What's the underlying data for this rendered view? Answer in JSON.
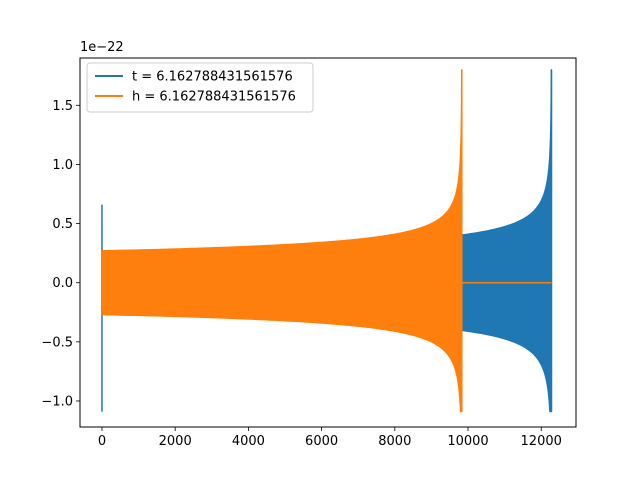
{
  "chart_data": {
    "type": "line",
    "title": "",
    "xlabel": "",
    "ylabel": "",
    "y_offset_text": "1e−22",
    "xlim": [
      -600,
      12950
    ],
    "ylim": [
      -1.22,
      1.9
    ],
    "x_ticks": [
      0,
      2000,
      4000,
      6000,
      8000,
      10000,
      12000
    ],
    "x_tick_labels": [
      "0",
      "2000",
      "4000",
      "6000",
      "8000",
      "10000",
      "12000"
    ],
    "y_ticks": [
      -1.0,
      -0.5,
      0.0,
      0.5,
      1.0,
      1.5
    ],
    "y_tick_labels": [
      "−1.0",
      "−0.5",
      "0.0",
      "0.5",
      "1.0",
      "1.5"
    ],
    "grid": false,
    "legend_position": "top-left",
    "series": [
      {
        "name": "t = 6.162788431561576",
        "color": "#1f77b4",
        "spike": {
          "x": 0,
          "ymin": -1.09,
          "ymax": 0.66
        },
        "envelope": {
          "x_start": 0,
          "x_end": 12280,
          "start_amplitude": 0.27,
          "chirp_time": 12280,
          "peak_upper": 1.8,
          "peak_lower": -1.09
        }
      },
      {
        "name": "h = 6.162788431561576",
        "color": "#ff7f0e",
        "envelope": {
          "x_start": 0,
          "x_end": 9830,
          "start_amplitude": 0.27,
          "chirp_time": 9830,
          "peak_upper": 1.8,
          "peak_lower": -1.09
        },
        "tail": {
          "x_start": 9830,
          "x_end": 12280,
          "y": 0.0
        }
      }
    ]
  }
}
